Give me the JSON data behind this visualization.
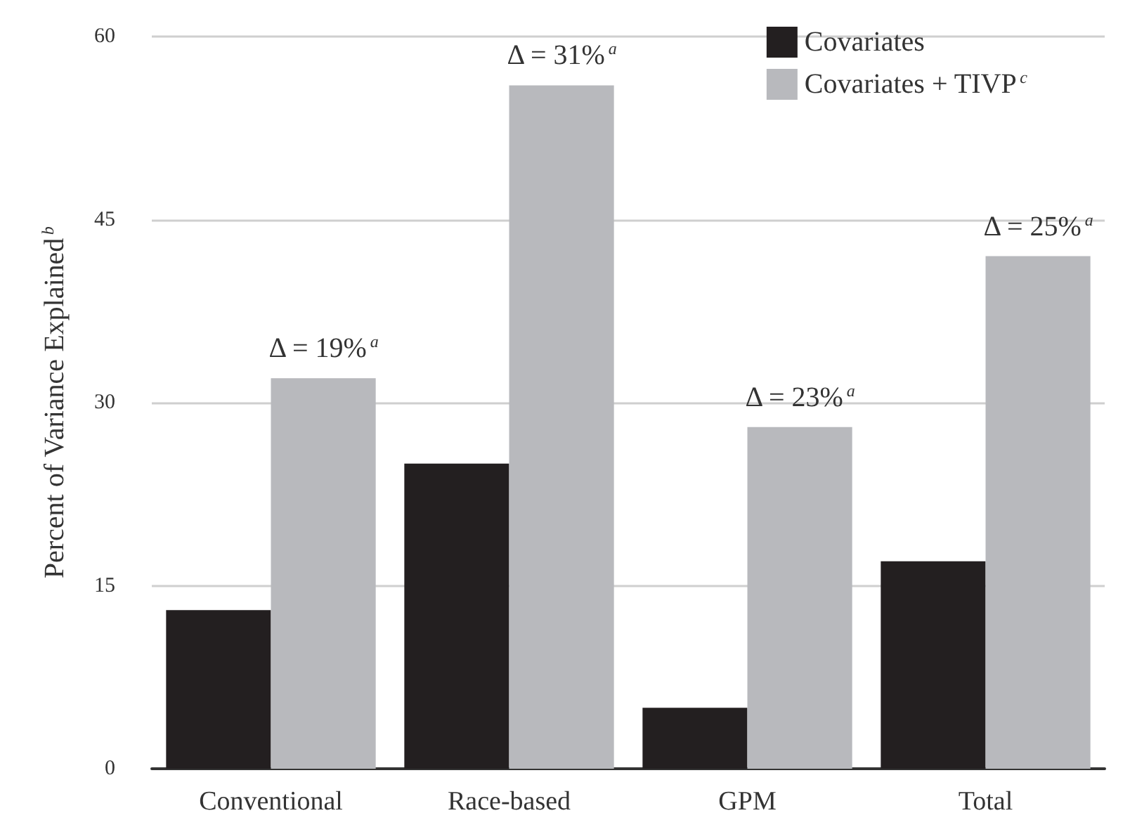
{
  "chart_data": {
    "type": "bar",
    "ylabel": "Percent of Variance Explained$^{b}$",
    "categories": [
      "Conventional",
      "Race-based",
      "GPM",
      "Total"
    ],
    "series": [
      {
        "name": "Covariates",
        "color": "#231f20",
        "values": [
          13,
          25,
          5,
          17
        ]
      },
      {
        "name": "Covariates + TIVP$^{c}$",
        "color": "#b8b9bd",
        "values": [
          32,
          56,
          28,
          42
        ]
      }
    ],
    "ylim": [
      0,
      60
    ],
    "yticks": [
      0,
      15,
      30,
      45,
      60
    ],
    "grid": "y",
    "legend": "top right",
    "annotations": [
      {
        "text": "Δ = 19%$^{a}$",
        "x": "Conventional",
        "y": 32
      },
      {
        "text": "Δ = 31%$^{a}$",
        "x": "Race-based",
        "y": 56
      },
      {
        "text": "Δ = 23%$^{a}$",
        "x": "GPM",
        "y": 28
      },
      {
        "text": "Δ = 25%$^{a}$",
        "x": "Total",
        "y": 42
      }
    ]
  }
}
